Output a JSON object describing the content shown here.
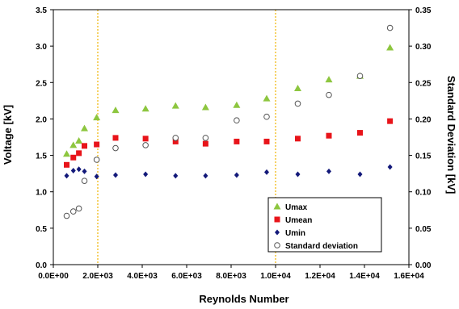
{
  "chart_data": {
    "type": "scatter",
    "title": "",
    "xlabel": "Reynolds Number",
    "ylabel": "Voltage [kV]",
    "y2label": "Standard Deviation [kV]",
    "xlim": [
      0,
      16000
    ],
    "ylim": [
      0,
      3.5
    ],
    "y2lim": [
      0,
      0.35
    ],
    "x_ticks": [
      0,
      2000,
      4000,
      6000,
      8000,
      10000,
      12000,
      14000,
      16000
    ],
    "x_tick_labels": [
      "0.0E+00",
      "2.0E+03",
      "4.0E+03",
      "6.0E+03",
      "8.0E+03",
      "1.0E+04",
      "1.2E+04",
      "1.4E+04",
      "1.6E+04"
    ],
    "y_ticks": [
      0,
      0.5,
      1.0,
      1.5,
      2.0,
      2.5,
      3.0,
      3.5
    ],
    "y_tick_labels": [
      "0.0",
      "0.5",
      "1.0",
      "1.5",
      "2.0",
      "2.5",
      "3.0",
      "3.5"
    ],
    "y2_ticks": [
      0,
      0.05,
      0.1,
      0.15,
      0.2,
      0.25,
      0.3,
      0.35
    ],
    "y2_tick_labels": [
      "0.00",
      "0.05",
      "0.10",
      "0.15",
      "0.20",
      "0.25",
      "0.30",
      "0.35"
    ],
    "vertical_lines": [
      2000,
      10000
    ],
    "vertical_line_color": "#f0b400",
    "grid": false,
    "legend_position": "bottom-right",
    "series": [
      {
        "name": "Umax",
        "marker": "triangle",
        "color": "#8dc63f",
        "axis": "left",
        "x": [
          600,
          900,
          1150,
          1400,
          1950,
          2800,
          4150,
          5500,
          6850,
          8250,
          9600,
          11000,
          12400,
          13800,
          15150
        ],
        "y": [
          1.52,
          1.64,
          1.7,
          1.87,
          2.02,
          2.12,
          2.14,
          2.18,
          2.16,
          2.19,
          2.28,
          2.42,
          2.54,
          2.59,
          2.98
        ]
      },
      {
        "name": "Umean",
        "marker": "square",
        "color": "#e8141a",
        "axis": "left",
        "x": [
          600,
          900,
          1150,
          1400,
          1950,
          2800,
          4150,
          5500,
          6850,
          8250,
          9600,
          11000,
          12400,
          13800,
          15150
        ],
        "y": [
          1.37,
          1.47,
          1.53,
          1.63,
          1.65,
          1.74,
          1.73,
          1.69,
          1.66,
          1.69,
          1.69,
          1.73,
          1.77,
          1.81,
          1.97
        ]
      },
      {
        "name": "Umin",
        "marker": "diamond",
        "color": "#13197a",
        "axis": "left",
        "x": [
          600,
          900,
          1150,
          1400,
          1950,
          2800,
          4150,
          5500,
          6850,
          8250,
          9600,
          11000,
          12400,
          13800,
          15150
        ],
        "y": [
          1.22,
          1.29,
          1.31,
          1.28,
          1.21,
          1.23,
          1.24,
          1.22,
          1.22,
          1.23,
          1.27,
          1.24,
          1.28,
          1.24,
          1.34
        ]
      },
      {
        "name": "Standard deviation",
        "marker": "circle-open",
        "color": "#555555",
        "axis": "right",
        "x": [
          600,
          900,
          1150,
          1400,
          1950,
          2800,
          4150,
          5500,
          6850,
          8250,
          9600,
          11000,
          12400,
          13800,
          15150
        ],
        "y": [
          0.067,
          0.073,
          0.077,
          0.115,
          0.144,
          0.16,
          0.164,
          0.174,
          0.174,
          0.198,
          0.203,
          0.221,
          0.233,
          0.259,
          0.325
        ]
      }
    ]
  }
}
